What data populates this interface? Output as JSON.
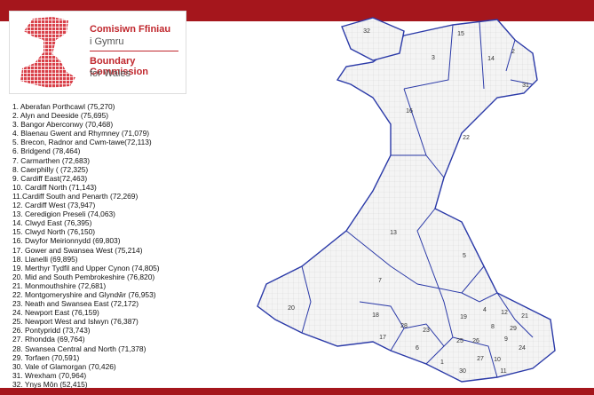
{
  "logo": {
    "welsh_line1": "Comisiwn Ffiniau",
    "welsh_line2": "i Gymru",
    "english_line1": "Boundary Commission",
    "english_line2": "for Wales"
  },
  "constituencies": [
    "1. Aberafan Porthcawl (75,270)",
    "2. Alyn and Deeside (75,695)",
    "3. Bangor Aberconwy (70,468)",
    "4. Blaenau Gwent and Rhymney (71,079)",
    "5. Brecon, Radnor and Cwm-tawe(72,113)",
    "6. Bridgend (78,464)",
    "7. Carmarthen (72,683)",
    "8. Caerphilly ( (72,325)",
    "9. Cardiff East(72,463)",
    "10. Cardiff North (71,143)",
    "11.Cardiff South and Penarth (72,269)",
    "12. Cardiff West (73,947)",
    "13. Ceredigion Preseli (74,063)",
    "14. Clwyd East (76,395)",
    "15. Clwyd North (76,150)",
    "16. Dwyfor Meirionnydd (69,803)",
    "17. Gower and Swansea West (75,214)",
    "18. Llanelli (69,895)",
    "19. Merthyr Tydfil and Upper Cynon (74,805)",
    "20. Mid and South Pembrokeshire (76,820)",
    "21. Monmouthshire (72,681)",
    "22. Montgomeryshire and Glyndŵr (76,953)",
    "23. Neath and Swansea East (72,172)",
    "24. Newport East (76,159)",
    "25. Newport West and Islwyn (76,387)",
    "26. Pontypridd (73,743)",
    "27. Rhondda (69,764)",
    "28. Swansea Central and North (71,378)",
    "29. Torfaen (70,591)",
    "30. Vale of Glamorgan (70,426)",
    "31. Wrexham (70,964)",
    "32. Ynys Môn (52,415)"
  ],
  "map_labels": [
    "32",
    "15",
    "3",
    "14",
    "2",
    "31",
    "16",
    "22",
    "13",
    "5",
    "7",
    "20",
    "18",
    "17",
    "28",
    "23",
    "19",
    "4",
    "12",
    "21",
    "6",
    "25",
    "26",
    "9",
    "24",
    "30",
    "10",
    "27",
    "1",
    "8",
    "29",
    "11"
  ]
}
